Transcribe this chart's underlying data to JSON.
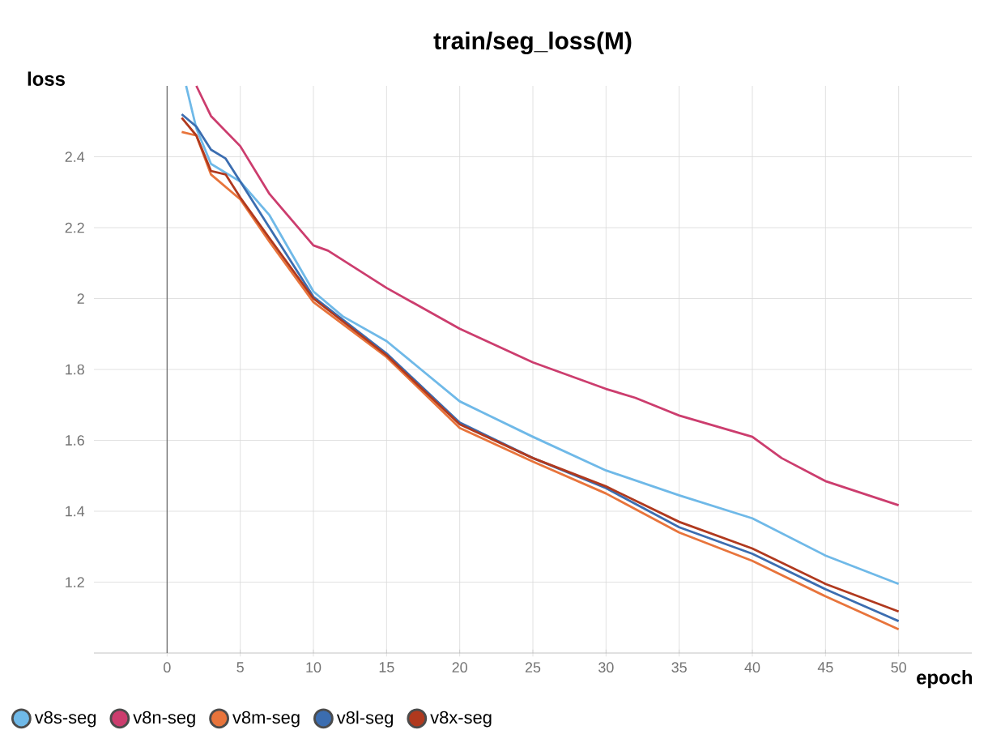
{
  "chart_data": {
    "type": "line",
    "title": "train/seg_loss(M)",
    "xlabel": "epoch",
    "ylabel": "loss",
    "xlim": [
      -5,
      55
    ],
    "ylim": [
      1.0,
      2.6
    ],
    "xticks": [
      0,
      5,
      10,
      15,
      20,
      25,
      30,
      35,
      40,
      45,
      50
    ],
    "yticks": [
      1.2,
      1.4,
      1.6,
      1.8,
      2,
      2.2,
      2.4
    ],
    "grid": true,
    "legend": "bottom",
    "line_style": "solid",
    "ref_lines": [
      {
        "axis": "x",
        "value": 0,
        "color": "#666666"
      }
    ],
    "series": [
      {
        "name": "v8s-seg",
        "color": "#6fb9e8",
        "x": [
          1.3,
          2,
          3,
          5,
          7,
          10,
          12,
          15,
          20,
          25,
          30,
          35,
          40,
          45,
          50
        ],
        "values": [
          2.6,
          2.48,
          2.38,
          2.33,
          2.235,
          2.02,
          1.95,
          1.88,
          1.71,
          1.61,
          1.515,
          1.445,
          1.38,
          1.275,
          1.195
        ]
      },
      {
        "name": "v8n-seg",
        "color": "#cc3d6e",
        "x": [
          2,
          3,
          5,
          7,
          10,
          11,
          15,
          20,
          25,
          30,
          32,
          35,
          40,
          42,
          45,
          50
        ],
        "values": [
          2.6,
          2.515,
          2.43,
          2.295,
          2.15,
          2.135,
          2.03,
          1.915,
          1.82,
          1.745,
          1.72,
          1.67,
          1.61,
          1.55,
          1.485,
          1.417
        ]
      },
      {
        "name": "v8m-seg",
        "color": "#e8743b",
        "x": [
          1,
          2,
          3,
          5,
          7,
          10,
          15,
          20,
          25,
          30,
          35,
          40,
          45,
          50
        ],
        "values": [
          2.47,
          2.46,
          2.35,
          2.28,
          2.16,
          1.99,
          1.835,
          1.635,
          1.54,
          1.45,
          1.34,
          1.26,
          1.16,
          1.067
        ]
      },
      {
        "name": "v8l-seg",
        "color": "#3b6db0",
        "x": [
          1,
          2,
          3,
          4,
          5,
          7,
          10,
          15,
          20,
          25,
          30,
          35,
          40,
          45,
          50
        ],
        "values": [
          2.52,
          2.485,
          2.42,
          2.395,
          2.33,
          2.2,
          2.005,
          1.845,
          1.65,
          1.55,
          1.465,
          1.355,
          1.28,
          1.18,
          1.09
        ]
      },
      {
        "name": "v8x-seg",
        "color": "#b0391e",
        "x": [
          1,
          2,
          3,
          4,
          5,
          7,
          10,
          15,
          20,
          25,
          30,
          35,
          40,
          45,
          50
        ],
        "values": [
          2.51,
          2.46,
          2.36,
          2.35,
          2.285,
          2.17,
          2.0,
          1.84,
          1.645,
          1.55,
          1.47,
          1.37,
          1.295,
          1.195,
          1.117
        ]
      }
    ]
  }
}
